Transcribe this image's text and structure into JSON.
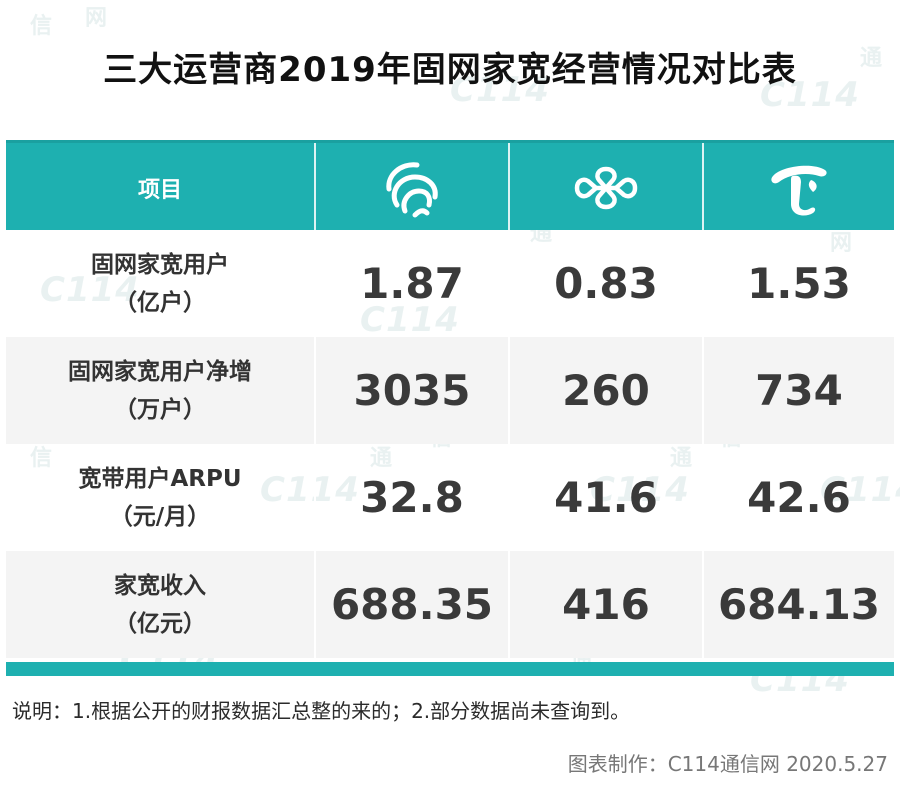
{
  "title": "三大运营商2019年固网家宽经营情况对比表",
  "header": {
    "item_label": "项目",
    "operators": [
      {
        "icon": "china-mobile-logo"
      },
      {
        "icon": "china-unicom-logo"
      },
      {
        "icon": "china-telecom-logo"
      }
    ]
  },
  "rows": [
    {
      "label_line1": "固网家宽用户",
      "label_line2": "（亿户）",
      "values": [
        "1.87",
        "0.83",
        "1.53"
      ]
    },
    {
      "label_line1": "固网家宽用户净增",
      "label_line2": "（万户）",
      "values": [
        "3035",
        "260",
        "734"
      ]
    },
    {
      "label_line1": "宽带用户ARPU",
      "label_line2": "（元/月）",
      "values": [
        "32.8",
        "41.6",
        "42.6"
      ]
    },
    {
      "label_line1": "家宽收入",
      "label_line2": "（亿元）",
      "values": [
        "688.35",
        "416",
        "684.13"
      ]
    }
  ],
  "note": "说明：1.根据公开的财报数据汇总整的来的；2.部分数据尚未查询到。",
  "credit": "图表制作：C114通信网  2020.5.27",
  "colors": {
    "accent": "#1eb0b0",
    "row_alt": "#f4f4f4"
  },
  "watermark": {
    "brand": "C114",
    "chars": [
      "通",
      "信",
      "网"
    ]
  }
}
